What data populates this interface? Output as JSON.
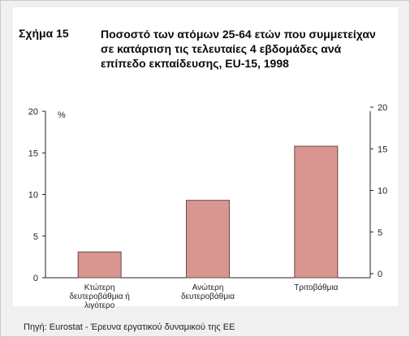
{
  "figure": {
    "label": "Σχήμα 15",
    "title": "Ποσοστό των ατόμων 25-64 ετών που συμμετείχαν σε κατάρτιση τις τελευταίες 4 εβδομάδες ανά επίπεδο εκπαίδευσης, EU-15, 1998",
    "source": "Πηγή: Eurostat - Έρευνα εργατικού δυναμικού της ΕΕ"
  },
  "chart_data": {
    "type": "bar",
    "categories": [
      [
        "Κτώτερη",
        "δευτεροβάθμια ή",
        "λιγότερο"
      ],
      [
        "Ανώτερη",
        "δευτεροβάθμια"
      ],
      [
        "Τριτοβάθμια"
      ]
    ],
    "values": [
      3.1,
      9.3,
      15.8
    ],
    "ylabel": "%",
    "ylim": [
      0,
      20
    ],
    "yticks": [
      "0",
      "5",
      "10",
      "15",
      "20"
    ],
    "secondary_axis": true,
    "grid": false,
    "bar_color": "#d99590",
    "bar_edge": "#6a4a48"
  }
}
